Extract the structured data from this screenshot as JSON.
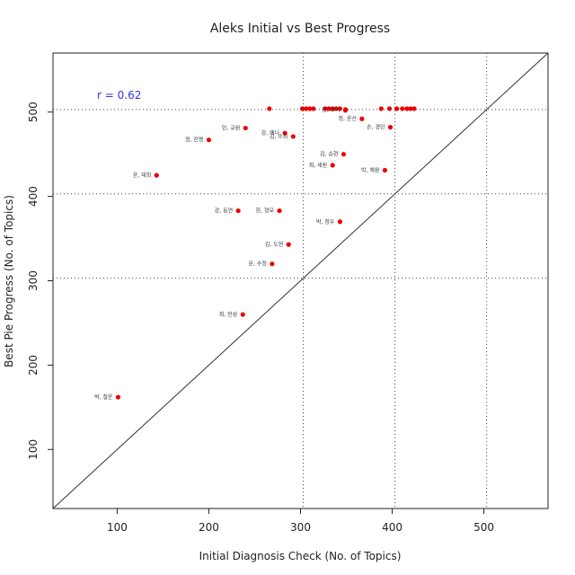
{
  "chart_data": {
    "type": "scatter",
    "title": "Aleks Initial vs Best Progress",
    "xlabel": "Initial Diagnosis Check (No. of Topics)",
    "ylabel": "Best Pie Progress (No. of Topics)",
    "xlim": [
      30,
      570
    ],
    "ylim": [
      30,
      570
    ],
    "x_ticks": [
      100,
      200,
      300,
      400,
      500
    ],
    "y_ticks": [
      100,
      200,
      300,
      400,
      500
    ],
    "x_tick_labels": [
      "100",
      "200",
      "300",
      "400",
      "500"
    ],
    "y_tick_labels": [
      "100",
      "200",
      "300",
      "400",
      "500"
    ],
    "reference_x": [
      303,
      403,
      503
    ],
    "reference_y": [
      303,
      403,
      503
    ],
    "identity_line": true,
    "correlation_text": "r =  0.62",
    "point_color": "#ee0000",
    "correlation_color": "#3333dd",
    "points": [
      {
        "x": 101,
        "y": 162,
        "label": "박, 철운"
      },
      {
        "x": 143,
        "y": 425,
        "label": "윤, 태희"
      },
      {
        "x": 200,
        "y": 467,
        "label": "정, 진명"
      },
      {
        "x": 237,
        "y": 260,
        "label": "최, 민성"
      },
      {
        "x": 240,
        "y": 481,
        "label": "민, 규원"
      },
      {
        "x": 232,
        "y": 383,
        "label": "강, 동연"
      },
      {
        "x": 269,
        "y": 320,
        "label": "문, 수정"
      },
      {
        "x": 277,
        "y": 383,
        "label": "한, 형모"
      },
      {
        "x": 283,
        "y": 475,
        "label": "강, 예나"
      },
      {
        "x": 292,
        "y": 471,
        "label": "김, 수희"
      },
      {
        "x": 287,
        "y": 343,
        "label": "김, 도현"
      },
      {
        "x": 335,
        "y": 437,
        "label": "최, 세원"
      },
      {
        "x": 343,
        "y": 370,
        "label": "박, 정우"
      },
      {
        "x": 347,
        "y": 450,
        "label": "김, 승현"
      },
      {
        "x": 349,
        "y": 503,
        "label": "전, 호비"
      },
      {
        "x": 367,
        "y": 492,
        "label": "정, 윤선"
      },
      {
        "x": 392,
        "y": 431,
        "label": "박, 채원"
      },
      {
        "x": 398,
        "y": 482,
        "label": "손, 경민"
      },
      {
        "x": 266,
        "y": 504,
        "label": ""
      },
      {
        "x": 302,
        "y": 504,
        "label": ""
      },
      {
        "x": 306,
        "y": 504,
        "label": ""
      },
      {
        "x": 310,
        "y": 504,
        "label": ""
      },
      {
        "x": 314,
        "y": 504,
        "label": ""
      },
      {
        "x": 327,
        "y": 504,
        "label": ""
      },
      {
        "x": 331,
        "y": 504,
        "label": ""
      },
      {
        "x": 335,
        "y": 504,
        "label": ""
      },
      {
        "x": 339,
        "y": 504,
        "label": ""
      },
      {
        "x": 343,
        "y": 504,
        "label": ""
      },
      {
        "x": 349,
        "y": 502,
        "label": ""
      },
      {
        "x": 388,
        "y": 504,
        "label": ""
      },
      {
        "x": 397,
        "y": 504,
        "label": ""
      },
      {
        "x": 405,
        "y": 504,
        "label": ""
      },
      {
        "x": 411,
        "y": 504,
        "label": ""
      },
      {
        "x": 416,
        "y": 504,
        "label": ""
      },
      {
        "x": 420,
        "y": 504,
        "label": ""
      },
      {
        "x": 424,
        "y": 504,
        "label": ""
      }
    ]
  }
}
